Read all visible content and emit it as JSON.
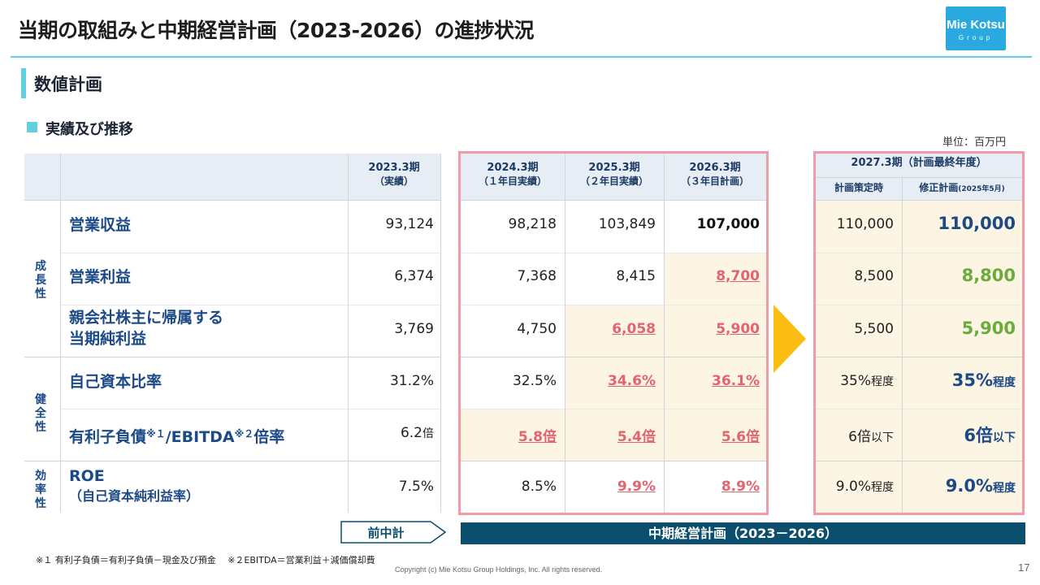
{
  "header": {
    "title": "当期の取組みと中期経営計画（2023-2026）の進捗状況",
    "logo_line1": "Mie Kotsu",
    "logo_line2": "Group"
  },
  "section": {
    "title": "数値計画",
    "subtitle": "実績及び推移",
    "unit": "単位：百万円"
  },
  "columns": {
    "fy2023": {
      "label": "2023.3期",
      "sub": "（実績）"
    },
    "fy2024": {
      "label": "2024.3期",
      "sub": "（１年目実績）"
    },
    "fy2025": {
      "label": "2025.3期",
      "sub": "（２年目実績）"
    },
    "fy2026": {
      "label": "2026.3期",
      "sub": "（３年目計画）"
    },
    "fy2027": {
      "label": "2027.3期（計画最終年度）",
      "sub_orig": "計画策定時",
      "sub_rev": "修正計画",
      "sub_rev_note": "(2025年5月)"
    }
  },
  "groups": {
    "growth": "成長性",
    "soundness": "健全性",
    "efficiency": "効率性"
  },
  "rows": [
    {
      "label": "営業収益",
      "fy2023": "93,124",
      "fy2024": "98,218",
      "fy2025": "103,849",
      "fy2026": "107,000",
      "orig": "110,000",
      "rev": "110,000"
    },
    {
      "label": "営業利益",
      "fy2023": "6,374",
      "fy2024": "7,368",
      "fy2025": "8,415",
      "fy2026": "8,700",
      "orig": "8,500",
      "rev": "8,800"
    },
    {
      "label_l1": "親会社株主に帰属する",
      "label_l2": "当期純利益",
      "fy2023": "3,769",
      "fy2024": "4,750",
      "fy2025": "6,058",
      "fy2026": "5,900",
      "orig": "5,500",
      "rev": "5,900"
    },
    {
      "label": "自己資本比率",
      "fy2023": "31.2%",
      "fy2024": "32.5%",
      "fy2025": "34.6%",
      "fy2026": "36.1%",
      "orig": "35%",
      "orig_suffix": "程度",
      "rev": "35%",
      "rev_suffix": "程度"
    },
    {
      "label_a": "有利子負債",
      "label_b": "※１",
      "label_c": "/EBITDA",
      "label_d": "※２",
      "label_e": "倍率",
      "fy2023": "6.2",
      "fy2023_suffix": "倍",
      "fy2024": "5.8倍",
      "fy2025": "5.4倍",
      "fy2026": "5.6倍",
      "orig": "6倍",
      "orig_suffix": "以下",
      "rev": "6倍",
      "rev_suffix": "以下"
    },
    {
      "label_l1": "ROE",
      "label_l2": "（自己資本純利益率）",
      "fy2023": "7.5%",
      "fy2024": "8.5%",
      "fy2025": "9.9%",
      "fy2026": "8.9%",
      "orig": "9.0%",
      "orig_suffix": "程度",
      "rev": "9.0%",
      "rev_suffix": "程度"
    }
  ],
  "bottom": {
    "prev_plan": "前中計",
    "plan_bar": "中期経営計画（2023－2026）"
  },
  "footnote": "※１ 有利子負債＝有利子負債－現金及び預金　 ※２EBITDA＝営業利益＋減価償却費",
  "copyright": "Copyright (c) Mie Kotsu Group Holdings, Inc. All rights reserved.",
  "page_number": "17",
  "colors": {
    "accent": "#5fd0de",
    "frame": "#f09ba6",
    "highlight_red": "#e2646e",
    "highlight_green": "#6aab3b",
    "arrow": "#fbbd11",
    "plan_bar": "#0b4e6d",
    "header_bg": "#e7edf5",
    "beige": "#fdf5e4"
  }
}
